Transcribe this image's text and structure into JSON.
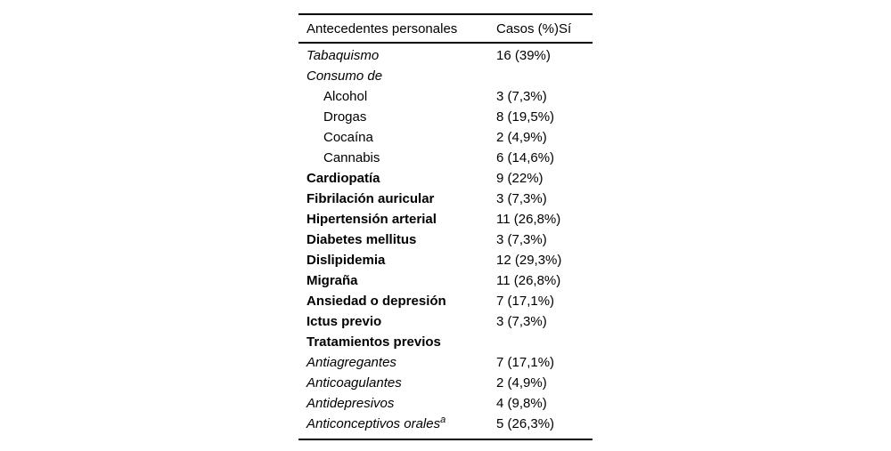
{
  "table": {
    "header": {
      "col1": "Antecedentes personales",
      "col2": "Casos (%)Sí"
    },
    "rows": [
      {
        "label": "Tabaquismo",
        "superscript": "",
        "value": "16 (39%)",
        "style": "italic",
        "indent": 0
      },
      {
        "label": "Consumo de",
        "superscript": "",
        "value": "",
        "style": "italic",
        "indent": 0
      },
      {
        "label": "Alcohol",
        "superscript": "",
        "value": "3 (7,3%)",
        "style": "normal",
        "indent": 1
      },
      {
        "label": "Drogas",
        "superscript": "",
        "value": "8 (19,5%)",
        "style": "normal",
        "indent": 1
      },
      {
        "label": "Cocaína",
        "superscript": "",
        "value": "2 (4,9%)",
        "style": "normal",
        "indent": 1
      },
      {
        "label": "Cannabis",
        "superscript": "",
        "value": "6 (14,6%)",
        "style": "normal",
        "indent": 1
      },
      {
        "label": "Cardiopatía",
        "superscript": "",
        "value": "9 (22%)",
        "style": "bold",
        "indent": 0
      },
      {
        "label": "Fibrilación auricular",
        "superscript": "",
        "value": "3 (7,3%)",
        "style": "bold",
        "indent": 0
      },
      {
        "label": "Hipertensión arterial",
        "superscript": "",
        "value": "11 (26,8%)",
        "style": "bold",
        "indent": 0
      },
      {
        "label": "Diabetes mellitus",
        "superscript": "",
        "value": "3 (7,3%)",
        "style": "bold",
        "indent": 0
      },
      {
        "label": "Dislipidemia",
        "superscript": "",
        "value": "12 (29,3%)",
        "style": "bold",
        "indent": 0
      },
      {
        "label": "Migraña",
        "superscript": "",
        "value": "11 (26,8%)",
        "style": "bold",
        "indent": 0
      },
      {
        "label": "Ansiedad o depresión",
        "superscript": "",
        "value": "7 (17,1%)",
        "style": "bold",
        "indent": 0
      },
      {
        "label": "Ictus previo",
        "superscript": "",
        "value": "3 (7,3%)",
        "style": "bold",
        "indent": 0
      },
      {
        "label": "Tratamientos previos",
        "superscript": "",
        "value": "",
        "style": "bold",
        "indent": 0
      },
      {
        "label": "Antiagregantes",
        "superscript": "",
        "value": "7 (17,1%)",
        "style": "italic",
        "indent": 0
      },
      {
        "label": "Anticoagulantes",
        "superscript": "",
        "value": "2 (4,9%)",
        "style": "italic",
        "indent": 0
      },
      {
        "label": "Antidepresivos",
        "superscript": "",
        "value": "4 (9,8%)",
        "style": "italic",
        "indent": 0
      },
      {
        "label": "Anticonceptivos orales",
        "superscript": "a",
        "value": "5 (26,3%)",
        "style": "italic",
        "indent": 0
      }
    ]
  },
  "chart_data": {
    "type": "table",
    "title": "Antecedentes personales",
    "columns": [
      "Antecedentes personales",
      "Casos (%)Sí"
    ],
    "rows": [
      [
        "Tabaquismo",
        "16 (39%)"
      ],
      [
        "Consumo de",
        ""
      ],
      [
        "Alcohol",
        "3 (7,3%)"
      ],
      [
        "Drogas",
        "8 (19,5%)"
      ],
      [
        "Cocaína",
        "2 (4,9%)"
      ],
      [
        "Cannabis",
        "6 (14,6%)"
      ],
      [
        "Cardiopatía",
        "9 (22%)"
      ],
      [
        "Fibrilación auricular",
        "3 (7,3%)"
      ],
      [
        "Hipertensión arterial",
        "11 (26,8%)"
      ],
      [
        "Diabetes mellitus",
        "3 (7,3%)"
      ],
      [
        "Dislipidemia",
        "12 (29,3%)"
      ],
      [
        "Migraña",
        "11 (26,8%)"
      ],
      [
        "Ansiedad o depresión",
        "7 (17,1%)"
      ],
      [
        "Ictus previo",
        "3 (7,3%)"
      ],
      [
        "Tratamientos previos",
        ""
      ],
      [
        "Antiagregantes",
        "7 (17,1%)"
      ],
      [
        "Anticoagulantes",
        "2 (4,9%)"
      ],
      [
        "Antidepresivos",
        "4 (9,8%)"
      ],
      [
        "Anticonceptivos oralesᵃ",
        "5 (26,3%)"
      ]
    ]
  }
}
